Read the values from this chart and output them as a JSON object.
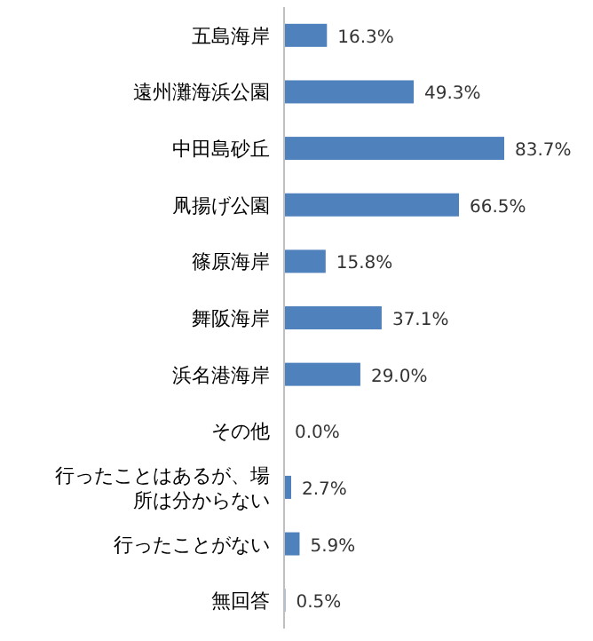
{
  "chart_data": {
    "type": "bar",
    "orientation": "horizontal",
    "categories": [
      "五島海岸",
      "遠州灘海浜公園",
      "中田島砂丘",
      "凧揚げ公園",
      "篠原海岸",
      "舞阪海岸",
      "浜名港海岸",
      "その他",
      "行ったことはあるが、場所は分からない",
      "行ったことがない",
      "無回答"
    ],
    "values": [
      16.3,
      49.3,
      83.7,
      66.5,
      15.8,
      37.1,
      29.0,
      0.0,
      2.7,
      5.9,
      0.5
    ],
    "value_labels": [
      "16.3%",
      "49.3%",
      "83.7%",
      "66.5%",
      "15.8%",
      "37.1%",
      "29.0%",
      "0.0%",
      "2.7%",
      "5.9%",
      "0.5%"
    ],
    "color": "#4f81bd"
  }
}
